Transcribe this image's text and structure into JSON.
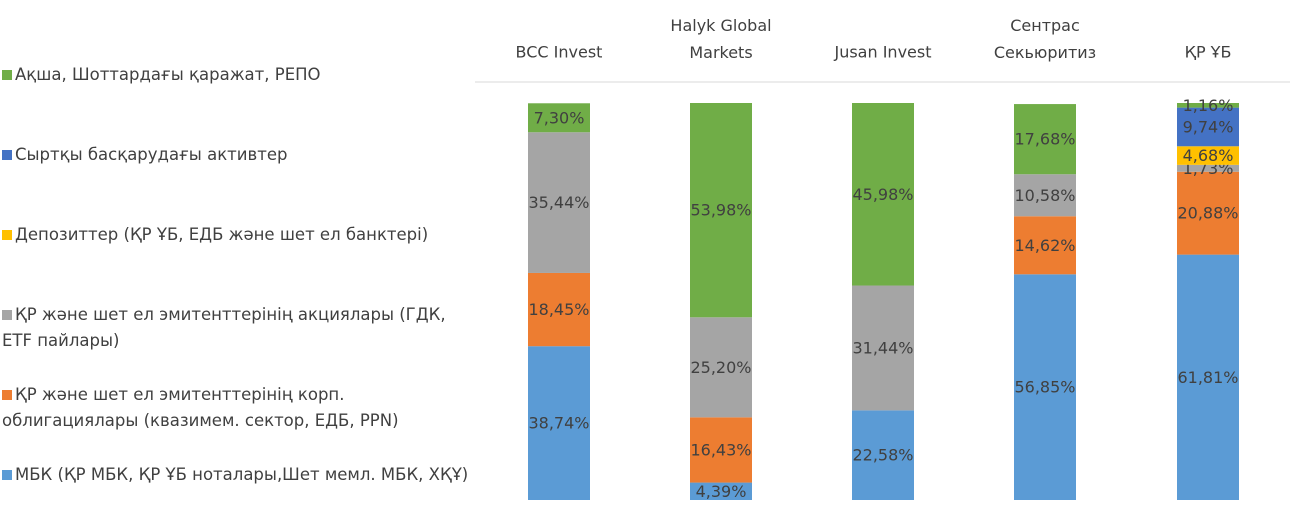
{
  "chart_data": {
    "type": "stacked_bar_100",
    "categories": [
      "BCC Invest",
      "Halyk Global Markets",
      "Jusan Invest",
      "Сентрас Секьюритиз",
      "ҚР ҰБ"
    ],
    "ylim": [
      0,
      100
    ],
    "series": [
      {
        "name": "МБК (ҚР МБК, ҚР ҰБ ноталары,Шет мемл. МБК, ХҚҰ)",
        "color": "#5b9bd5",
        "values": [
          38.74,
          4.39,
          22.58,
          56.85,
          61.81
        ],
        "value_labels": [
          "38,74%",
          "4,39%",
          "22,58%",
          "56,85%",
          "61,81%"
        ]
      },
      {
        "name": "ҚР және шет ел эмитенттерінің корп. облигациялары (квазимем. сектор, ЕДБ, PPN)",
        "color": "#ed7d31",
        "values": [
          18.45,
          16.43,
          null,
          14.62,
          20.88
        ],
        "value_labels": [
          "18,45%",
          "16,43%",
          null,
          "14,62%",
          "20,88%"
        ]
      },
      {
        "name": "ҚР және шет ел эмитенттерінің акциялары (ГДК, ETF пайлары)",
        "color": "#a5a5a5",
        "values": [
          35.44,
          25.2,
          31.44,
          10.58,
          1.73
        ],
        "value_labels": [
          "35,44%",
          "25,20%",
          "31,44%",
          "10,58%",
          "1,73%"
        ]
      },
      {
        "name": "Депозиттер (ҚР ҰБ, ЕДБ және шет ел банктері)",
        "color": "#ffc000",
        "values": [
          null,
          null,
          null,
          null,
          4.68
        ],
        "value_labels": [
          null,
          null,
          null,
          null,
          "4,68%"
        ]
      },
      {
        "name": "Сыртқы басқарудағы активтер",
        "color": "#4472c4",
        "values": [
          null,
          null,
          null,
          null,
          9.74
        ],
        "value_labels": [
          null,
          null,
          null,
          null,
          "9,74%"
        ]
      },
      {
        "name": "Ақша, Шоттардағы қаражат, РЕПО",
        "color": "#70ad47",
        "values": [
          7.3,
          53.98,
          45.98,
          17.68,
          1.16
        ],
        "value_labels": [
          "7,30%",
          "53,98%",
          "45,98%",
          "17,68%",
          "1,16%"
        ]
      }
    ]
  }
}
